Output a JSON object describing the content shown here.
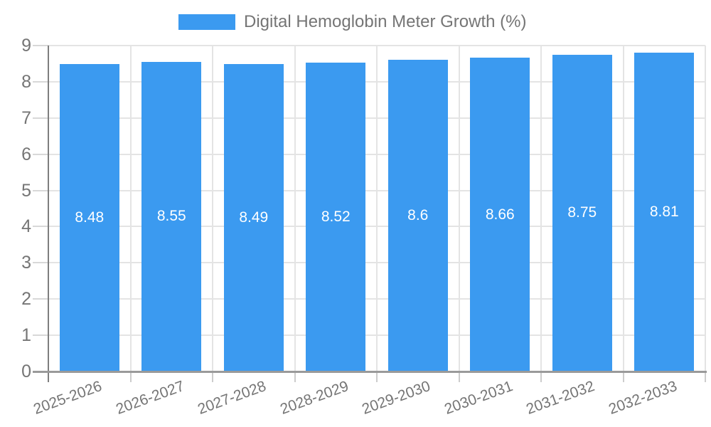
{
  "legend": {
    "label": "Digital Hemoglobin Meter Growth (%)"
  },
  "chart_data": {
    "type": "bar",
    "title": "Digital Hemoglobin Meter Growth (%)",
    "categories": [
      "2025-2026",
      "2026-2027",
      "2027-2028",
      "2028-2029",
      "2029-2030",
      "2030-2031",
      "2031-2032",
      "2032-2033"
    ],
    "values": [
      8.48,
      8.55,
      8.49,
      8.52,
      8.6,
      8.66,
      8.75,
      8.81
    ],
    "value_labels": [
      "8.48",
      "8.55",
      "8.49",
      "8.52",
      "8.6",
      "8.66",
      "8.75",
      "8.81"
    ],
    "xlabel": "",
    "ylabel": "",
    "ylim": [
      0,
      9
    ],
    "yticks": [
      0,
      1,
      2,
      3,
      4,
      5,
      6,
      7,
      8,
      9
    ],
    "grid": true,
    "legend_position": "top",
    "bar_color": "#3B9AF0",
    "value_label_color": "#FFFFFF",
    "axis_text_color": "#757575"
  }
}
